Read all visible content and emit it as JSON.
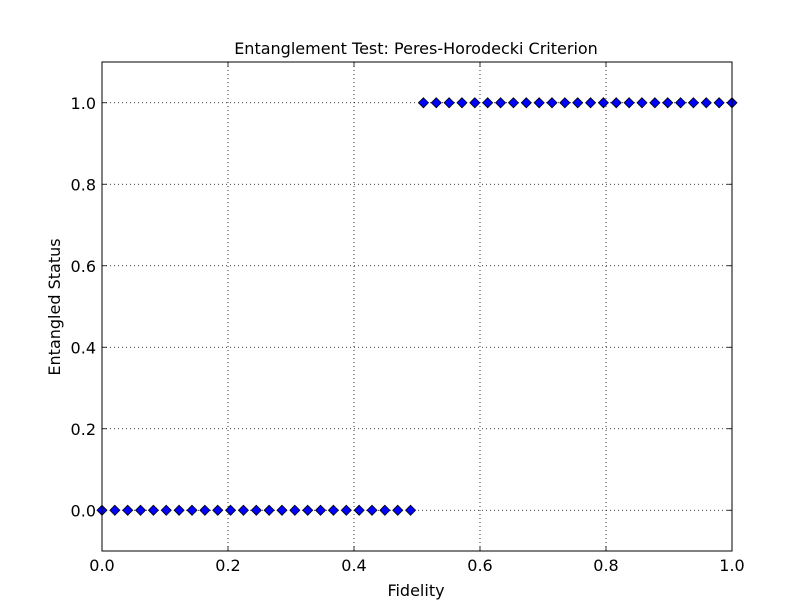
{
  "chart_data": {
    "type": "scatter",
    "title": "Entanglement Test: Peres-Horodecki Criterion",
    "xlabel": "Fidelity",
    "ylabel": "Entangled Status",
    "xlim": [
      0.0,
      1.0
    ],
    "ylim": [
      -0.1,
      1.1
    ],
    "grid": true,
    "marker": "diamond",
    "marker_color": "#0000ff",
    "line_color": "#000000",
    "xticks": [
      "0.0",
      "0.2",
      "0.4",
      "0.6",
      "0.8",
      "1.0"
    ],
    "yticks": [
      "0.0",
      "0.2",
      "0.4",
      "0.6",
      "0.8",
      "1.0"
    ],
    "series": [
      {
        "x": [
          0.0,
          0.0204,
          0.0408,
          0.0612,
          0.0816,
          0.102,
          0.1224,
          0.1429,
          0.1633,
          0.1837,
          0.2041,
          0.2245,
          0.2449,
          0.2653,
          0.2857,
          0.3061,
          0.3265,
          0.3469,
          0.3673,
          0.3878,
          0.4082,
          0.4286,
          0.449,
          0.4694,
          0.4898,
          0.5102,
          0.5306,
          0.551,
          0.5714,
          0.5918,
          0.6122,
          0.6327,
          0.6531,
          0.6735,
          0.6939,
          0.7143,
          0.7347,
          0.7551,
          0.7755,
          0.7959,
          0.8163,
          0.8367,
          0.8571,
          0.8776,
          0.898,
          0.9184,
          0.9388,
          0.9592,
          0.9796,
          1.0
        ],
        "y": [
          0,
          0,
          0,
          0,
          0,
          0,
          0,
          0,
          0,
          0,
          0,
          0,
          0,
          0,
          0,
          0,
          0,
          0,
          0,
          0,
          0,
          0,
          0,
          0,
          0,
          1,
          1,
          1,
          1,
          1,
          1,
          1,
          1,
          1,
          1,
          1,
          1,
          1,
          1,
          1,
          1,
          1,
          1,
          1,
          1,
          1,
          1,
          1,
          1,
          1
        ]
      }
    ]
  }
}
